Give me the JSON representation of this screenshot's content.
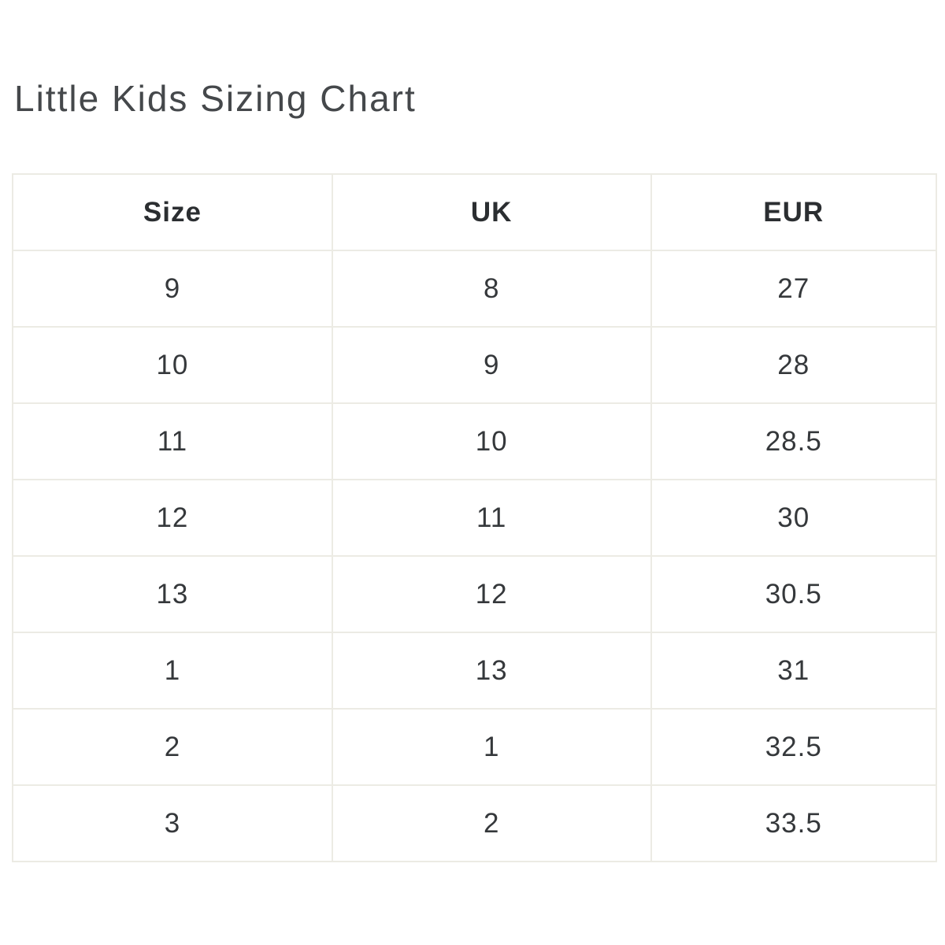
{
  "page": {
    "title": "Little Kids Sizing Chart"
  },
  "table": {
    "columns": [
      "Size",
      "UK",
      "EUR"
    ],
    "rows": [
      [
        "9",
        "8",
        "27"
      ],
      [
        "10",
        "9",
        "28"
      ],
      [
        "11",
        "10",
        "28.5"
      ],
      [
        "12",
        "11",
        "30"
      ],
      [
        "13",
        "12",
        "30.5"
      ],
      [
        "1",
        "13",
        "31"
      ],
      [
        "2",
        "1",
        "32.5"
      ],
      [
        "3",
        "2",
        "33.5"
      ]
    ]
  },
  "colors": {
    "background": "#ffffff",
    "title_text": "#45484b",
    "cell_text": "#35383b",
    "header_text": "#2b2e31",
    "table_border": "#ecebe4"
  }
}
